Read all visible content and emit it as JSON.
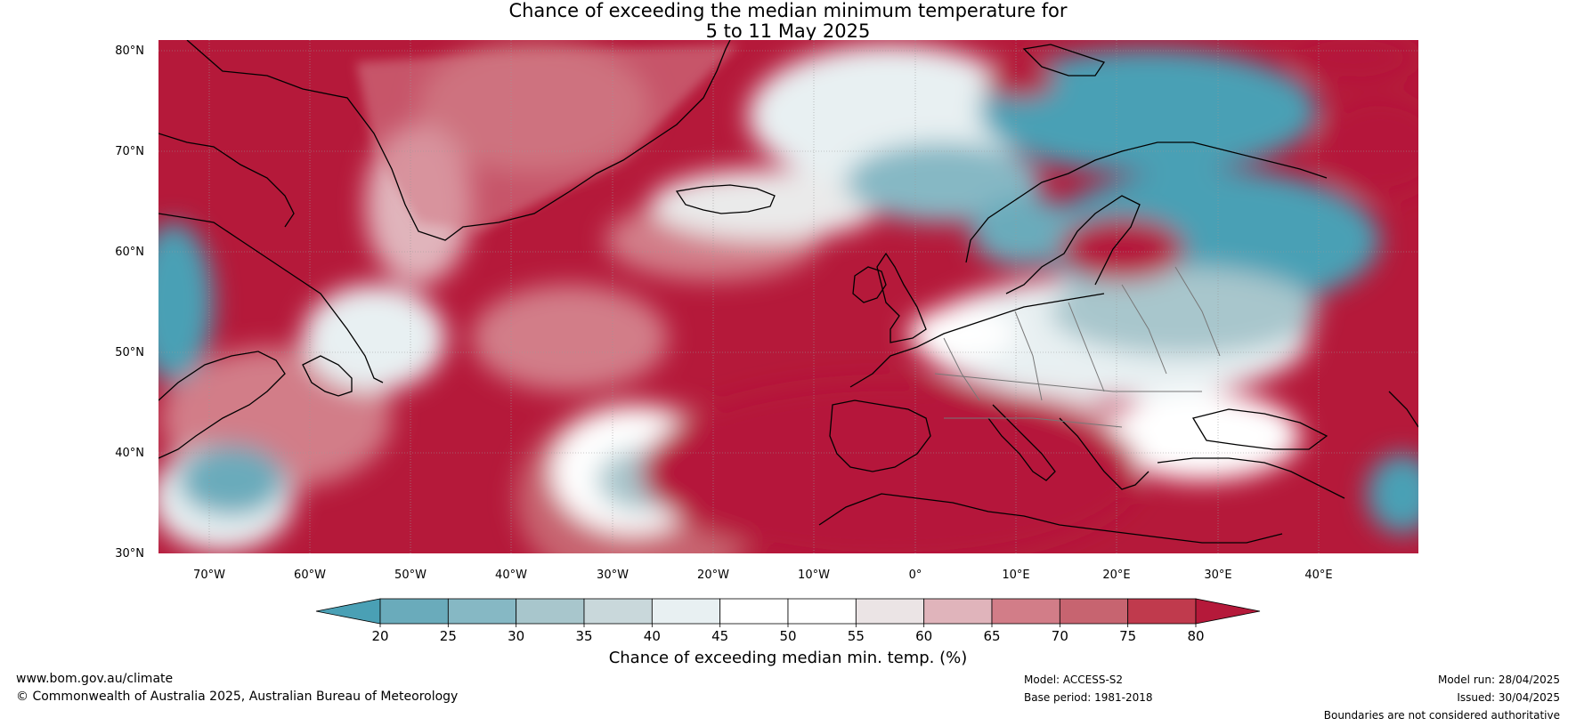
{
  "title": {
    "line1": "Chance of exceeding the median minimum temperature for",
    "line2": "5 to 11 May 2025"
  },
  "map": {
    "latitude_labels": [
      "80°N",
      "70°N",
      "60°N",
      "50°N",
      "40°N",
      "30°N"
    ],
    "longitude_labels": [
      "70°W",
      "60°W",
      "50°W",
      "40°W",
      "30°W",
      "20°W",
      "10°W",
      "0°",
      "10°E",
      "20°E",
      "30°E",
      "40°E"
    ],
    "lon_range": [
      -75,
      50
    ],
    "lat_range": [
      30,
      81
    ]
  },
  "colorbar": {
    "title": "Chance of exceeding median min. temp. (%)",
    "ticks": [
      "20",
      "25",
      "30",
      "35",
      "40",
      "45",
      "50",
      "55",
      "60",
      "65",
      "70",
      "75",
      "80"
    ],
    "colors": [
      "#4aa0b5",
      "#6aabbb",
      "#86b8c4",
      "#a8c6cc",
      "#c9d8db",
      "#e8f0f2",
      "#ffffff",
      "#ffffff",
      "#ebe4e5",
      "#e0b4bb",
      "#d27d88",
      "#c76470",
      "#c03a4d",
      "#b5193a"
    ]
  },
  "footer": {
    "website": "www.bom.gov.au/climate",
    "copyright": "© Commonwealth of Australia 2025, Australian Bureau of Meteorology",
    "model": "Model: ACCESS-S2",
    "base_period": "Base period: 1981-2018",
    "model_run": "Model run: 28/04/2025",
    "issued": "Issued: 30/04/2025",
    "disclaimer": "Boundaries are not considered authoritative"
  }
}
